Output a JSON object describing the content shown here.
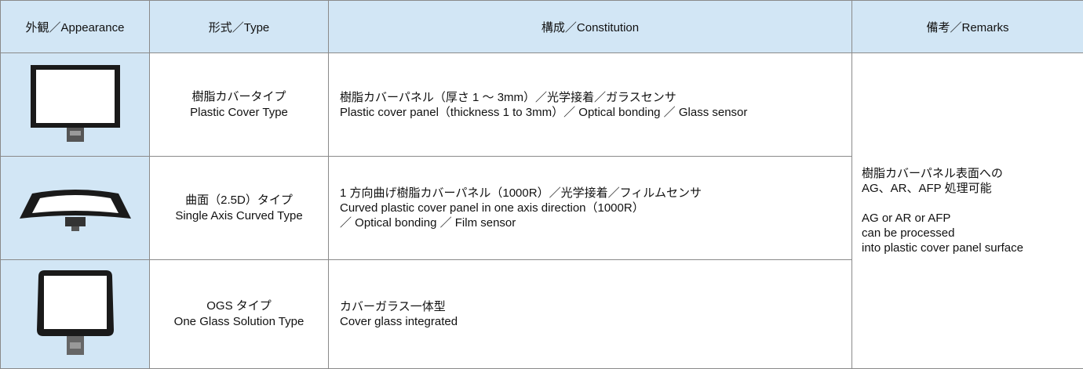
{
  "table": {
    "header": [
      "外観／Appearance",
      "形式／Type",
      "構成／Constitution",
      "備考／Remarks"
    ],
    "rows": [
      {
        "type": [
          "樹脂カバータイプ",
          "Plastic Cover Type"
        ],
        "constitution": [
          "樹脂カバーパネル（厚さ 1 ～ 3mm）／光学接着／ガラスセンサ",
          "Plastic cover panel（thickness 1 to 3mm）／ Optical bonding ／ Glass sensor"
        ]
      },
      {
        "type": [
          "曲面（2.5D）タイプ",
          "Single Axis Curved Type"
        ],
        "constitution": [
          "1 方向曲げ樹脂カバーパネル（1000R）／光学接着／フィルムセンサ",
          "Curved plastic cover panel in one axis direction（1000R）",
          "／ Optical bonding ／ Film sensor"
        ]
      },
      {
        "type": [
          "OGS タイプ",
          "One Glass Solution Type"
        ],
        "constitution": [
          "カバーガラス一体型",
          "Cover glass integrated"
        ]
      }
    ],
    "remarks": [
      [
        "樹脂カバーパネル表面への",
        "AG、AR、AFP 処理可能"
      ],
      [
        "AG or AR or AFP",
        "can be processed",
        "into plastic cover panel surface"
      ]
    ]
  }
}
